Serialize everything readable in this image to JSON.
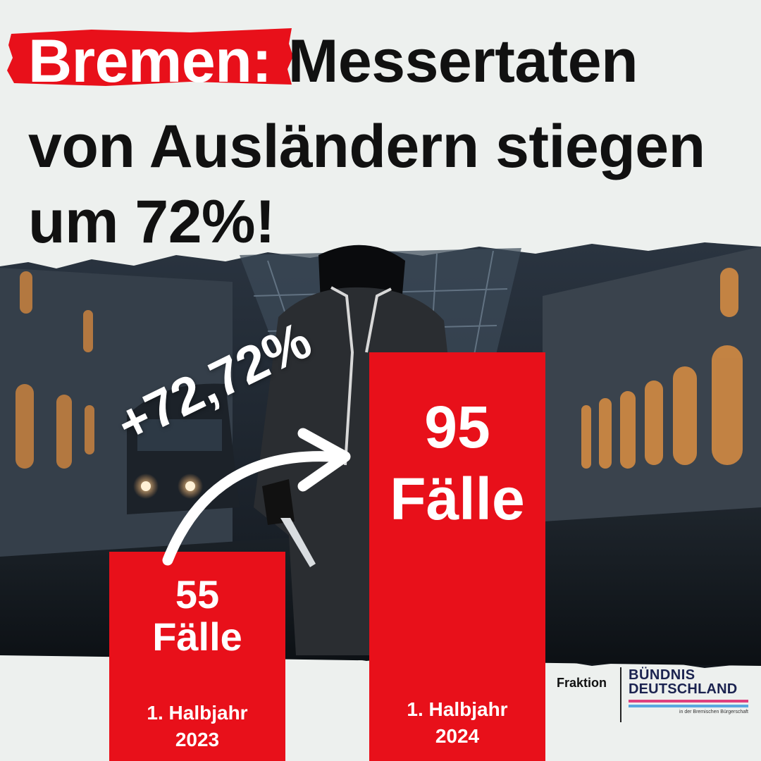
{
  "headline": {
    "highlight": "Bremen:",
    "line1_rest": "Messertaten",
    "line2": "von Ausländern stiegen",
    "line3": "um 72%!"
  },
  "colors": {
    "accent_red": "#e8101a",
    "headline_text": "#111111",
    "background": "#edf0ee",
    "logo_navy": "#1b2350",
    "logo_pink": "#e0407e",
    "logo_blue": "#5aa8e0"
  },
  "scene_icons": [
    "train-station-background",
    "hooded-figure-with-knife",
    "train-icon"
  ],
  "chart_data": {
    "type": "bar",
    "categories": [
      "1. Halbjahr 2023",
      "1. Halbjahr 2024"
    ],
    "category_parts": [
      {
        "line1": "1. Halbjahr",
        "line2": "2023"
      },
      {
        "line1": "1. Halbjahr",
        "line2": "2024"
      }
    ],
    "values": [
      55,
      95
    ],
    "value_labels": [
      {
        "number": "55",
        "unit": "Fälle"
      },
      {
        "number": "95",
        "unit": "Fälle"
      }
    ],
    "annotation": "+72,72%",
    "annotation_icon": "curved-arrow-icon",
    "ylim": [
      0,
      100
    ],
    "grid": false
  },
  "logo": {
    "prefix": "Fraktion",
    "line1": "BÜNDNIS",
    "line2": "DEUTSCHLAND",
    "subline": "in der Bremischen Bürgerschaft"
  }
}
